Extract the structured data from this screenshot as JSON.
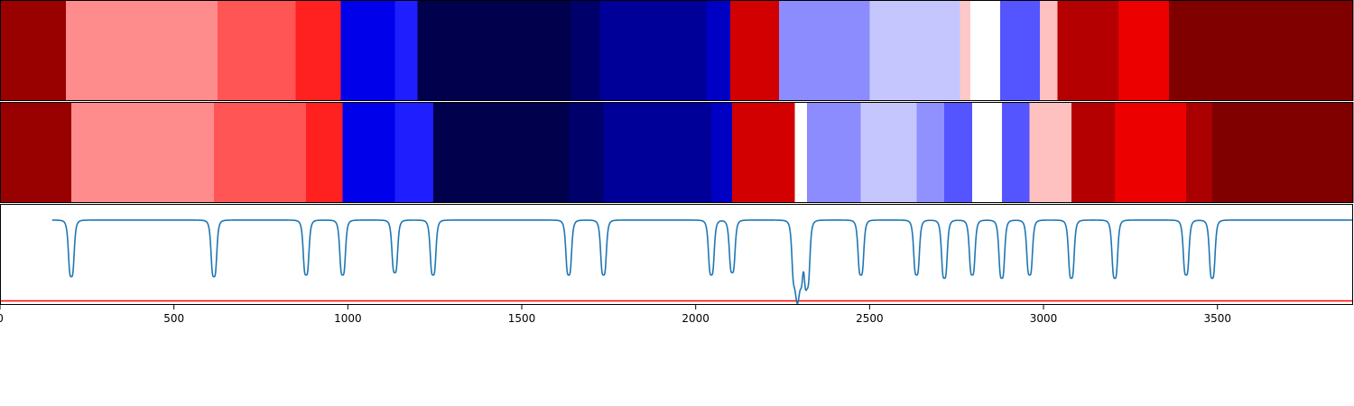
{
  "chart_data": {
    "type": "heatmap",
    "title": "",
    "xlabel": "",
    "ylabel": "",
    "xlim": [
      0,
      3890
    ],
    "xticks": [
      0,
      500,
      1000,
      1500,
      2000,
      2500,
      3000,
      3500
    ],
    "xtick_labels": [
      "0",
      "500",
      "1000",
      "1500",
      "2000",
      "2500",
      "3000",
      "3500"
    ],
    "segment_rows": [
      {
        "name": "",
        "segments": [
          {
            "start": 0,
            "end": 190,
            "color": "#990000"
          },
          {
            "start": 190,
            "end": 625,
            "color": "#ff8c8c"
          },
          {
            "start": 625,
            "end": 850,
            "color": "#ff5555"
          },
          {
            "start": 850,
            "end": 980,
            "color": "#ff2020"
          },
          {
            "start": 980,
            "end": 1135,
            "color": "#0000ea"
          },
          {
            "start": 1135,
            "end": 1200,
            "color": "#1e1eff"
          },
          {
            "start": 1200,
            "end": 1640,
            "color": "#00004c"
          },
          {
            "start": 1640,
            "end": 1725,
            "color": "#00006a"
          },
          {
            "start": 1725,
            "end": 2030,
            "color": "#000098"
          },
          {
            "start": 2030,
            "end": 2100,
            "color": "#0000c4"
          },
          {
            "start": 2100,
            "end": 2240,
            "color": "#d20000"
          },
          {
            "start": 2240,
            "end": 2500,
            "color": "#8c8cff"
          },
          {
            "start": 2500,
            "end": 2760,
            "color": "#c6c6ff"
          },
          {
            "start": 2760,
            "end": 2790,
            "color": "#ffc8c8"
          },
          {
            "start": 2790,
            "end": 2875,
            "color": "#ffffff"
          },
          {
            "start": 2875,
            "end": 2990,
            "color": "#5555ff"
          },
          {
            "start": 2990,
            "end": 3040,
            "color": "#ffc0c0"
          },
          {
            "start": 3040,
            "end": 3215,
            "color": "#b40000"
          },
          {
            "start": 3215,
            "end": 3360,
            "color": "#ec0000"
          },
          {
            "start": 3360,
            "end": 3890,
            "color": "#800000"
          }
        ]
      },
      {
        "name": "",
        "segments": [
          {
            "start": 0,
            "end": 205,
            "color": "#990000"
          },
          {
            "start": 205,
            "end": 615,
            "color": "#ff8c8c"
          },
          {
            "start": 615,
            "end": 880,
            "color": "#ff5555"
          },
          {
            "start": 880,
            "end": 985,
            "color": "#ff2020"
          },
          {
            "start": 985,
            "end": 1135,
            "color": "#0000ea"
          },
          {
            "start": 1135,
            "end": 1245,
            "color": "#1e1eff"
          },
          {
            "start": 1245,
            "end": 1635,
            "color": "#00004c"
          },
          {
            "start": 1635,
            "end": 1735,
            "color": "#00006a"
          },
          {
            "start": 1735,
            "end": 2045,
            "color": "#000098"
          },
          {
            "start": 2045,
            "end": 2105,
            "color": "#0000c4"
          },
          {
            "start": 2105,
            "end": 2285,
            "color": "#d20000"
          },
          {
            "start": 2285,
            "end": 2320,
            "color": "#ffffff"
          },
          {
            "start": 2320,
            "end": 2475,
            "color": "#8c8cff"
          },
          {
            "start": 2475,
            "end": 2635,
            "color": "#c6c6ff"
          },
          {
            "start": 2635,
            "end": 2715,
            "color": "#9090ff"
          },
          {
            "start": 2715,
            "end": 2795,
            "color": "#5555ff"
          },
          {
            "start": 2795,
            "end": 2880,
            "color": "#ffffff"
          },
          {
            "start": 2880,
            "end": 2960,
            "color": "#5555ff"
          },
          {
            "start": 2960,
            "end": 3080,
            "color": "#ffc0c0"
          },
          {
            "start": 3080,
            "end": 3205,
            "color": "#b40000"
          },
          {
            "start": 3205,
            "end": 3410,
            "color": "#ec0000"
          },
          {
            "start": 3410,
            "end": 3485,
            "color": "#aa0000"
          },
          {
            "start": 3485,
            "end": 3890,
            "color": "#800000"
          }
        ]
      }
    ],
    "line_panel": {
      "baseline": 0,
      "ylim": [
        -1.05,
        0.2
      ],
      "threshold": -1.0,
      "threshold_color": "#ff0000",
      "line_color": "#1f77b4",
      "x_end": 1275,
      "dips": [
        {
          "x": 205,
          "depth": 0.7
        },
        {
          "x": 615,
          "depth": 0.7
        },
        {
          "x": 880,
          "depth": 0.68
        },
        {
          "x": 985,
          "depth": 0.68
        },
        {
          "x": 1135,
          "depth": 0.65
        },
        {
          "x": 1245,
          "depth": 0.68
        },
        {
          "x": 1635,
          "depth": 0.68
        },
        {
          "x": 1735,
          "depth": 0.68
        },
        {
          "x": 2045,
          "depth": 0.68
        },
        {
          "x": 2105,
          "depth": 0.65
        },
        {
          "x": 2285,
          "depth": 0.77
        },
        {
          "x": 2300,
          "depth": 0.75
        },
        {
          "x": 2320,
          "depth": 0.82
        },
        {
          "x": 2475,
          "depth": 0.68
        },
        {
          "x": 2635,
          "depth": 0.68
        },
        {
          "x": 2715,
          "depth": 0.72
        },
        {
          "x": 2795,
          "depth": 0.68
        },
        {
          "x": 2880,
          "depth": 0.72
        },
        {
          "x": 2960,
          "depth": 0.68
        },
        {
          "x": 3080,
          "depth": 0.72
        },
        {
          "x": 3205,
          "depth": 0.72
        },
        {
          "x": 3410,
          "depth": 0.68
        },
        {
          "x": 3485,
          "depth": 0.72
        }
      ]
    }
  }
}
